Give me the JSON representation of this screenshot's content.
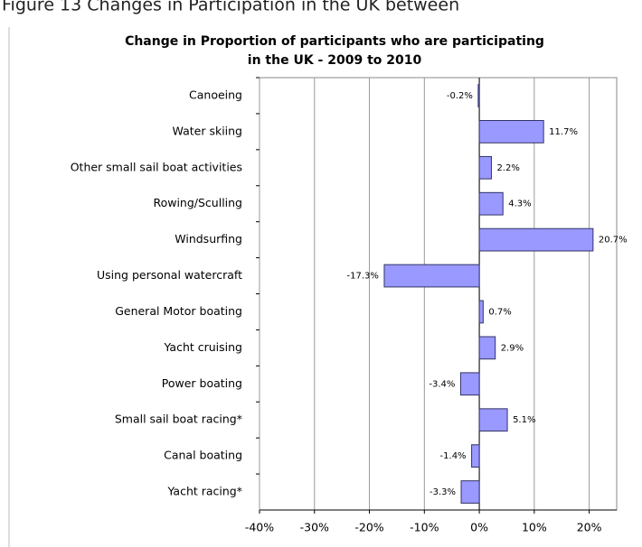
{
  "figure_caption": "Figure 13 Changes in Participation in the UK between",
  "chart_data": {
    "type": "bar",
    "orientation": "horizontal",
    "title": [
      "Change in Proportion of participants who are participating",
      "in the UK - 2009 to 2010"
    ],
    "categories": [
      "Canoeing",
      "Water skiing",
      "Other small sail boat activities",
      "Rowing/Sculling",
      "Windsurfing",
      "Using personal watercraft",
      "General Motor boating",
      "Yacht cruising",
      "Power boating",
      "Small sail boat racing*",
      "Canal boating",
      "Yacht racing*"
    ],
    "values": [
      -0.2,
      11.7,
      2.2,
      4.3,
      20.7,
      -17.3,
      0.7,
      2.9,
      -3.4,
      5.1,
      -1.4,
      -3.3
    ],
    "value_labels": [
      "-0.2%",
      "11.7%",
      "2.2%",
      "4.3%",
      "20.7%",
      "-17.3%",
      "0.7%",
      "2.9%",
      "-3.4%",
      "5.1%",
      "-1.4%",
      "-3.3%"
    ],
    "color": "#9999ff",
    "xlim": [
      -40,
      25
    ],
    "xticks": [
      {
        "value": -40,
        "label": "-40%"
      },
      {
        "value": -30,
        "label": "-30%"
      },
      {
        "value": -20,
        "label": "-20%"
      },
      {
        "value": -10,
        "label": "-10%"
      },
      {
        "value": 0,
        "label": "0%"
      },
      {
        "value": 10,
        "label": "10%"
      },
      {
        "value": 20,
        "label": "20%"
      }
    ],
    "grid": true
  }
}
